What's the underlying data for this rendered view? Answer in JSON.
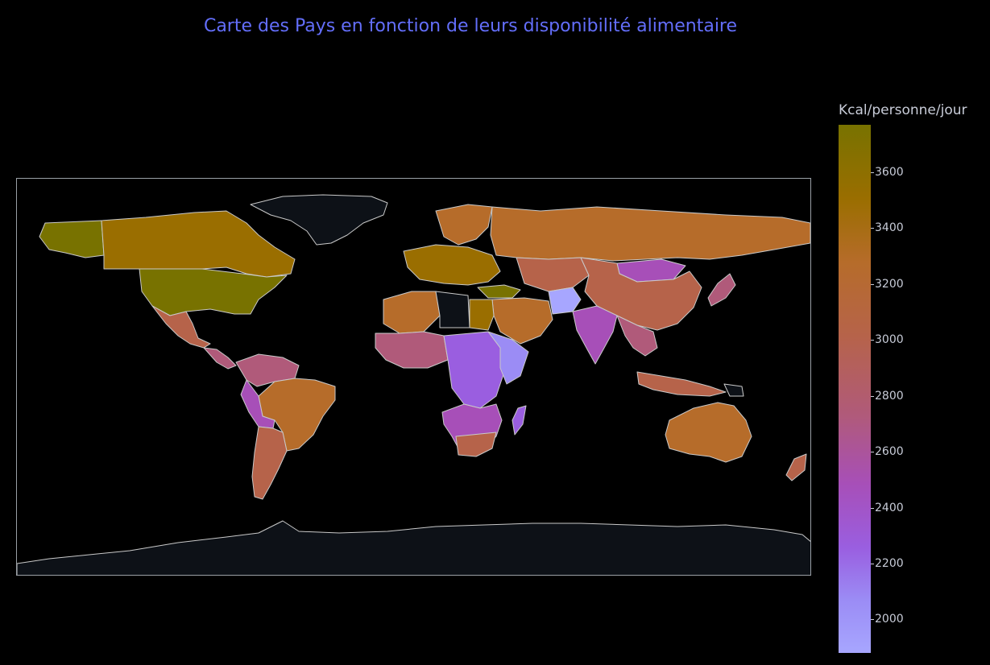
{
  "title": "Carte des Pays en fonction de leurs disponibilité alimentaire",
  "colorbar": {
    "title": "Kcal/personne/jour",
    "min": 1880,
    "max": 3770,
    "ticks": [
      "3600",
      "3400",
      "3200",
      "3000",
      "2800",
      "2600",
      "2400",
      "2200",
      "2000"
    ],
    "colors": [
      "#787200",
      "#9a6e00",
      "#b66c2a",
      "#b6634a",
      "#b05a7a",
      "#a74fb8",
      "#9a5ee0",
      "#9b8cf5",
      "#a7a6ff"
    ]
  },
  "map": {
    "projection": "equirectangular",
    "no_data_color": "#0d1117",
    "border_color": "#c9c9c9"
  }
}
